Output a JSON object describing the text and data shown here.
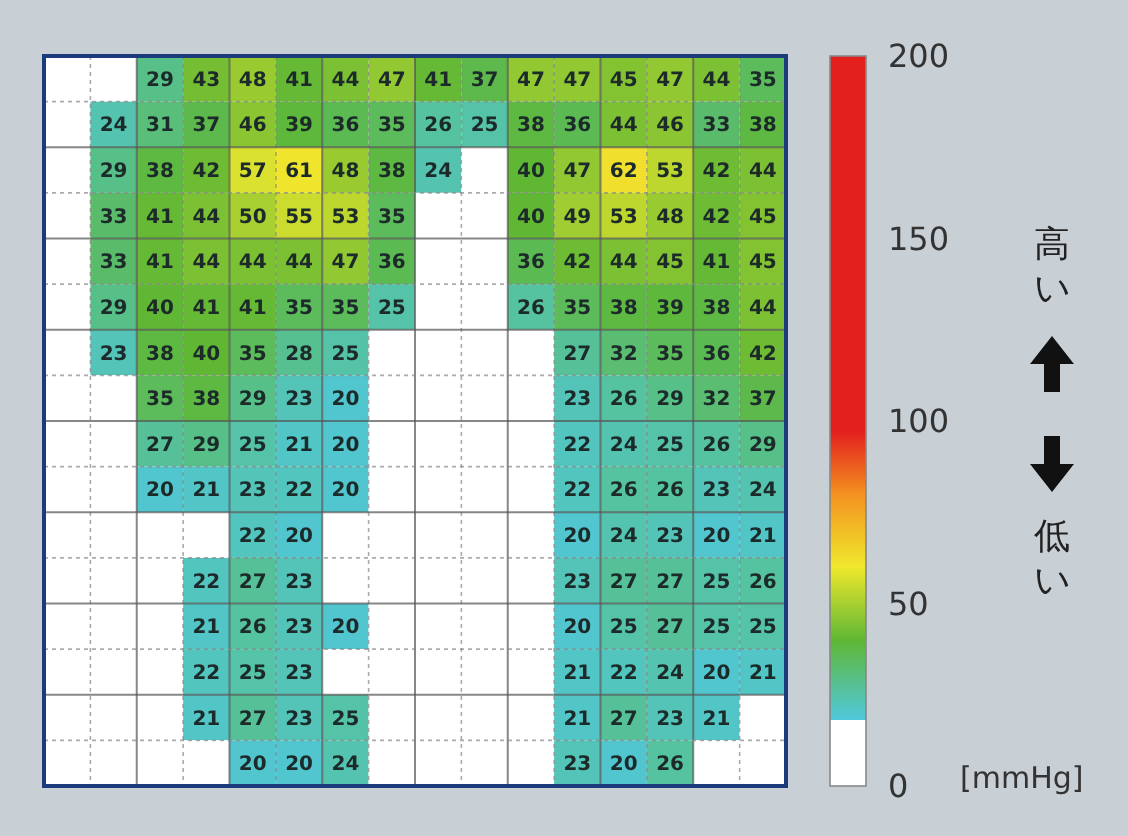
{
  "chart_data": {
    "type": "heatmap",
    "categories": [
      null,
      null,
      null,
      null,
      null,
      null,
      null,
      null,
      null,
      null,
      null,
      null,
      null,
      null,
      null,
      null
    ],
    "y_categories": [
      null,
      null,
      null,
      null,
      null,
      null,
      null,
      null,
      null,
      null,
      null,
      null,
      null,
      null,
      null,
      null
    ],
    "cells": [
      [
        null,
        null,
        29,
        43,
        48,
        41,
        44,
        47,
        41,
        37,
        47,
        47,
        45,
        47,
        44,
        35
      ],
      [
        null,
        24,
        31,
        37,
        46,
        39,
        36,
        35,
        26,
        25,
        38,
        36,
        44,
        46,
        33,
        38
      ],
      [
        null,
        29,
        38,
        42,
        57,
        61,
        48,
        38,
        24,
        null,
        40,
        47,
        62,
        53,
        42,
        44
      ],
      [
        null,
        33,
        41,
        44,
        50,
        55,
        53,
        35,
        null,
        null,
        40,
        49,
        53,
        48,
        42,
        45
      ],
      [
        null,
        33,
        41,
        44,
        44,
        44,
        47,
        36,
        null,
        null,
        36,
        42,
        44,
        45,
        41,
        45
      ],
      [
        null,
        29,
        40,
        41,
        41,
        35,
        35,
        25,
        null,
        null,
        26,
        35,
        38,
        39,
        38,
        44
      ],
      [
        null,
        23,
        38,
        40,
        35,
        28,
        25,
        null,
        null,
        null,
        null,
        27,
        32,
        35,
        36,
        42
      ],
      [
        null,
        null,
        35,
        38,
        29,
        23,
        20,
        null,
        null,
        null,
        null,
        23,
        26,
        29,
        32,
        37
      ],
      [
        null,
        null,
        27,
        29,
        25,
        21,
        20,
        null,
        null,
        null,
        null,
        22,
        24,
        25,
        26,
        29
      ],
      [
        null,
        null,
        20,
        21,
        23,
        22,
        20,
        null,
        null,
        null,
        null,
        22,
        26,
        26,
        23,
        24
      ],
      [
        null,
        null,
        null,
        null,
        22,
        20,
        null,
        null,
        null,
        null,
        null,
        20,
        24,
        23,
        20,
        21
      ],
      [
        null,
        null,
        null,
        22,
        27,
        23,
        null,
        null,
        null,
        null,
        null,
        23,
        27,
        27,
        25,
        26
      ],
      [
        null,
        null,
        null,
        21,
        26,
        23,
        20,
        null,
        null,
        null,
        null,
        20,
        25,
        27,
        25,
        25
      ],
      [
        null,
        null,
        null,
        22,
        25,
        23,
        null,
        null,
        null,
        null,
        null,
        21,
        22,
        24,
        20,
        21
      ],
      [
        null,
        null,
        null,
        21,
        27,
        23,
        25,
        null,
        null,
        null,
        null,
        21,
        27,
        23,
        21,
        null
      ],
      [
        null,
        null,
        null,
        null,
        20,
        20,
        24,
        null,
        null,
        null,
        null,
        23,
        20,
        26,
        null,
        null
      ]
    ],
    "data_labels": true,
    "clim": [
      0,
      200
    ],
    "cticks": [
      0,
      50,
      100,
      150,
      200
    ],
    "clabel": "[mmHg]",
    "annotations": [
      "高い",
      "低い"
    ]
  }
}
